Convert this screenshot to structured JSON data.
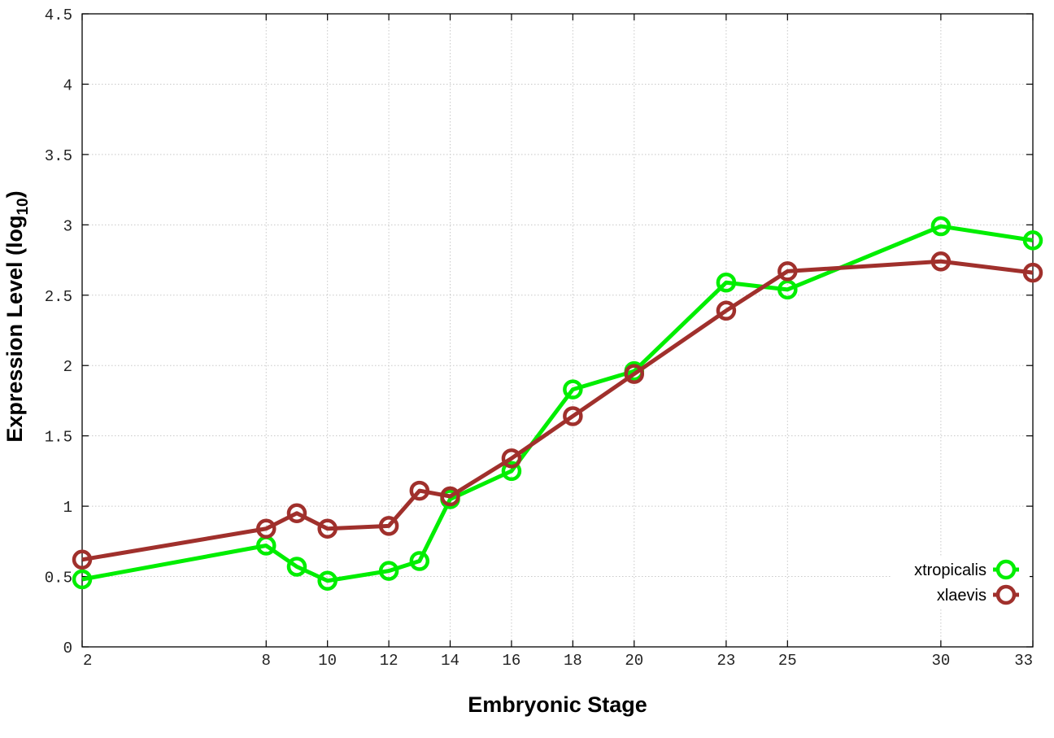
{
  "chart_data": {
    "type": "line",
    "xlabel": "Embryonic Stage",
    "ylabel": "Expression Level (log",
    "ylabel_sub": "10",
    "ylabel_close": ")",
    "xlim": [
      2,
      33
    ],
    "ylim": [
      0,
      4.5
    ],
    "x_ticks": [
      2,
      8,
      10,
      12,
      14,
      16,
      18,
      20,
      23,
      25,
      30,
      33
    ],
    "y_ticks": [
      0,
      0.5,
      1,
      1.5,
      2,
      2.5,
      3,
      3.5,
      4,
      4.5
    ],
    "y_tick_labels": [
      "0",
      "0.5",
      "1",
      "1.5",
      "2",
      "2.5",
      "3",
      "3.5",
      "4",
      "4.5"
    ],
    "grid": true,
    "legend_position": "bottom-right",
    "x": [
      2,
      8,
      9,
      10,
      12,
      13,
      14,
      16,
      18,
      20,
      23,
      25,
      30,
      33
    ],
    "series": [
      {
        "name": "xtropicalis",
        "color": "#00ee00",
        "values": [
          0.48,
          0.72,
          0.57,
          0.47,
          0.54,
          0.61,
          1.05,
          1.25,
          1.83,
          1.96,
          2.59,
          2.54,
          2.99,
          2.89
        ]
      },
      {
        "name": "xlaevis",
        "color": "#a0302c",
        "values": [
          0.62,
          0.84,
          0.95,
          0.84,
          0.86,
          1.11,
          1.07,
          1.34,
          1.64,
          1.94,
          2.39,
          2.67,
          2.74,
          2.66
        ]
      }
    ]
  }
}
